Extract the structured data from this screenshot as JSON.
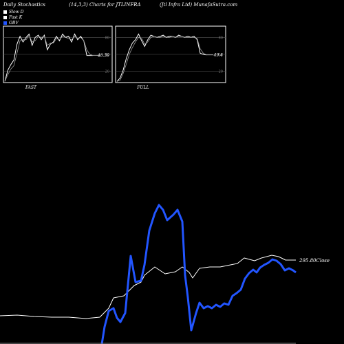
{
  "header": {
    "left": "Daily Stochastics",
    "center": "(14,3,3) Charts for JTLINFRA",
    "right": "(Jtl Infra Ltd) MunafaSutra.com"
  },
  "legend": [
    {
      "label": "Slow D",
      "color": "#ffffff"
    },
    {
      "label": "Fast K",
      "color": "#ffffff"
    },
    {
      "label": "OBV",
      "color": "#2255ff"
    }
  ],
  "chart_data": [
    {
      "type": "line",
      "panel_label": "FAST",
      "ylim": [
        0,
        100
      ],
      "yticks": [
        20,
        50,
        80
      ],
      "last_value_label": "48.39",
      "series": [
        {
          "name": "Fast K",
          "values": [
            2,
            22,
            32,
            40,
            68,
            82,
            72,
            80,
            86,
            66,
            80,
            84,
            76,
            84,
            58,
            68,
            72,
            82,
            74,
            86,
            80,
            82,
            72,
            86,
            76,
            82,
            74,
            48,
            48,
            48
          ]
        },
        {
          "name": "Slow D",
          "values": [
            2,
            14,
            24,
            30,
            52,
            74,
            76,
            76,
            84,
            72,
            74,
            82,
            80,
            82,
            66,
            70,
            70,
            78,
            76,
            82,
            80,
            78,
            76,
            82,
            78,
            80,
            74,
            58,
            50,
            48
          ]
        }
      ]
    },
    {
      "type": "line",
      "panel_label": "FULL",
      "ylim": [
        0,
        100
      ],
      "yticks": [
        20,
        50,
        80
      ],
      "last_value_label": "49.4",
      "series": [
        {
          "name": "Fast K",
          "values": [
            2,
            8,
            22,
            42,
            58,
            70,
            76,
            86,
            74,
            64,
            76,
            84,
            82,
            80,
            82,
            84,
            80,
            82,
            82,
            80,
            84,
            82,
            80,
            82,
            80,
            82,
            76,
            52,
            50,
            49
          ]
        },
        {
          "name": "Slow D",
          "values": [
            2,
            4,
            16,
            32,
            50,
            62,
            72,
            80,
            78,
            68,
            72,
            80,
            82,
            80,
            80,
            82,
            80,
            80,
            82,
            80,
            82,
            82,
            80,
            80,
            80,
            80,
            78,
            60,
            52,
            49
          ]
        }
      ]
    },
    {
      "type": "line",
      "last_value_label": "295.80Close",
      "series": [
        {
          "name": "Close",
          "values": [
            [
              0,
              459
            ],
            [
              25,
              458
            ],
            [
              50,
              460
            ],
            [
              75,
              461
            ],
            [
              100,
              461
            ],
            [
              125,
              463
            ],
            [
              145,
              461
            ],
            [
              158,
              448
            ],
            [
              165,
              433
            ],
            [
              180,
              430
            ],
            [
              195,
              415
            ],
            [
              205,
              410
            ],
            [
              210,
              400
            ],
            [
              225,
              388
            ],
            [
              240,
              398
            ],
            [
              255,
              395
            ],
            [
              265,
              388
            ],
            [
              275,
              396
            ],
            [
              280,
              404
            ],
            [
              290,
              390
            ],
            [
              305,
              388
            ],
            [
              320,
              388
            ],
            [
              335,
              385
            ],
            [
              345,
              383
            ],
            [
              355,
              375
            ],
            [
              370,
              379
            ],
            [
              380,
              375
            ],
            [
              395,
              371
            ],
            [
              405,
              373
            ],
            [
              415,
              378
            ],
            [
              430,
              378
            ]
          ]
        },
        {
          "name": "OBV",
          "values": [
            [
              148,
              500
            ],
            [
              152,
              475
            ],
            [
              158,
              452
            ],
            [
              165,
              448
            ],
            [
              170,
              462
            ],
            [
              175,
              468
            ],
            [
              182,
              455
            ],
            [
              190,
              372
            ],
            [
              197,
              410
            ],
            [
              205,
              408
            ],
            [
              210,
              385
            ],
            [
              217,
              335
            ],
            [
              225,
              310
            ],
            [
              231,
              298
            ],
            [
              237,
              305
            ],
            [
              243,
              320
            ],
            [
              252,
              312
            ],
            [
              258,
              305
            ],
            [
              265,
              322
            ],
            [
              269,
              400
            ],
            [
              273,
              432
            ],
            [
              278,
              480
            ],
            [
              285,
              455
            ],
            [
              290,
              440
            ],
            [
              296,
              448
            ],
            [
              302,
              445
            ],
            [
              308,
              448
            ],
            [
              314,
              443
            ],
            [
              320,
              446
            ],
            [
              326,
              441
            ],
            [
              332,
              443
            ],
            [
              338,
              430
            ],
            [
              344,
              426
            ],
            [
              350,
              421
            ],
            [
              356,
              405
            ],
            [
              362,
              397
            ],
            [
              368,
              392
            ],
            [
              373,
              396
            ],
            [
              378,
              389
            ],
            [
              384,
              385
            ],
            [
              390,
              382
            ],
            [
              396,
              377
            ],
            [
              402,
              379
            ],
            [
              408,
              384
            ],
            [
              414,
              393
            ],
            [
              420,
              390
            ],
            [
              426,
              393
            ],
            [
              430,
              396
            ]
          ]
        }
      ]
    }
  ]
}
